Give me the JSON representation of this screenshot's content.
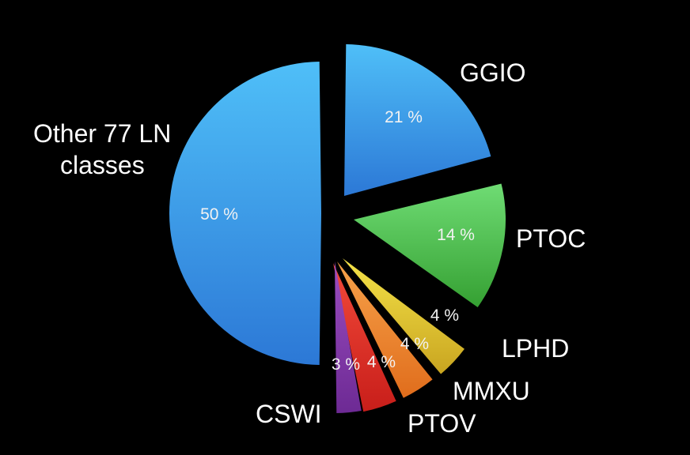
{
  "chart_data": {
    "type": "pie",
    "title": "",
    "slices": [
      {
        "name": "GGIO",
        "value": 21,
        "label": "21 %",
        "color": "#3f9ae6"
      },
      {
        "name": "PTOC",
        "value": 14,
        "label": "14 %",
        "color": "#4fc24f"
      },
      {
        "name": "LPHD",
        "value": 4,
        "label": "4 %",
        "color": "#e0c530"
      },
      {
        "name": "MMXU",
        "value": 4,
        "label": "4 %",
        "color": "#f08a30"
      },
      {
        "name": "PTOV",
        "value": 4,
        "label": "4 %",
        "color": "#e8322a"
      },
      {
        "name": "CSWI",
        "value": 3,
        "label": "3 %",
        "color": "#8a3aa8"
      },
      {
        "name": "Other 77 LN classes",
        "value": 50,
        "label": "50 %",
        "color": "#3f9ae6"
      }
    ]
  }
}
